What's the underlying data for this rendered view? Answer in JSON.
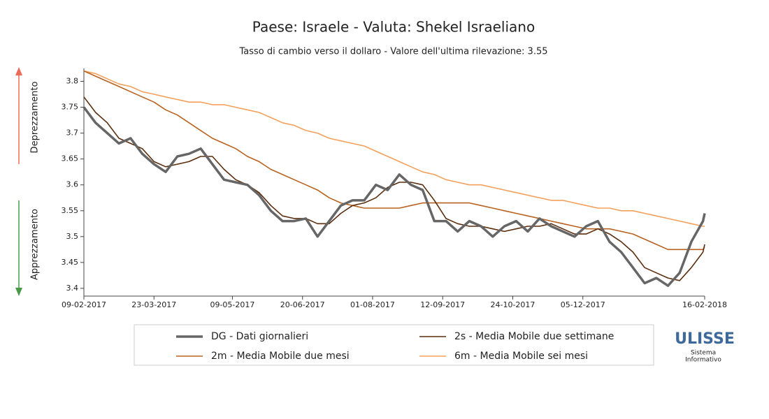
{
  "chart_data": {
    "type": "line",
    "title": "Paese: Israele - Valuta: Shekel Israeliano",
    "subtitle": "Tasso di cambio verso il dollaro - Valore dell'ultima rilevazione: 3.55",
    "side_labels": {
      "up": "Deprezzamento",
      "down": "Apprezzamento"
    },
    "logo": {
      "name": "ULISSE",
      "line1": "Sistema",
      "line2": "Informativo"
    },
    "x": [
      "09-02-2017",
      "16-02-2017",
      "23-02-2017",
      "02-03-2017",
      "09-03-2017",
      "16-03-2017",
      "23-03-2017",
      "30-03-2017",
      "06-04-2017",
      "13-04-2017",
      "20-04-2017",
      "27-04-2017",
      "04-05-2017",
      "11-05-2017",
      "18-05-2017",
      "25-05-2017",
      "01-06-2017",
      "08-06-2017",
      "15-06-2017",
      "22-06-2017",
      "29-06-2017",
      "06-07-2017",
      "13-07-2017",
      "20-07-2017",
      "27-07-2017",
      "03-08-2017",
      "10-08-2017",
      "17-08-2017",
      "24-08-2017",
      "31-08-2017",
      "07-09-2017",
      "14-09-2017",
      "21-09-2017",
      "28-09-2017",
      "05-10-2017",
      "12-10-2017",
      "19-10-2017",
      "26-10-2017",
      "02-11-2017",
      "09-11-2017",
      "16-11-2017",
      "23-11-2017",
      "30-11-2017",
      "07-12-2017",
      "14-12-2017",
      "21-12-2017",
      "28-12-2017",
      "04-01-2018",
      "11-01-2018",
      "18-01-2018",
      "25-01-2018",
      "01-02-2018",
      "08-02-2018",
      "15-02-2018",
      "16-02-2018"
    ],
    "series": [
      {
        "name": "DG - Dati giornalieri",
        "color": "#666666",
        "width": 3.5,
        "values": [
          3.75,
          3.72,
          3.7,
          3.68,
          3.69,
          3.66,
          3.64,
          3.625,
          3.655,
          3.66,
          3.67,
          3.64,
          3.61,
          3.605,
          3.6,
          3.58,
          3.55,
          3.53,
          3.53,
          3.535,
          3.5,
          3.53,
          3.56,
          3.57,
          3.57,
          3.6,
          3.59,
          3.62,
          3.6,
          3.59,
          3.53,
          3.53,
          3.51,
          3.53,
          3.52,
          3.5,
          3.52,
          3.53,
          3.51,
          3.535,
          3.52,
          3.51,
          3.5,
          3.52,
          3.53,
          3.49,
          3.47,
          3.44,
          3.41,
          3.42,
          3.405,
          3.43,
          3.49,
          3.53,
          3.545
        ]
      },
      {
        "name": "2s - Media Mobile due settimane",
        "color": "#5c2e0e",
        "width": 1.6,
        "values": [
          3.77,
          3.74,
          3.72,
          3.69,
          3.68,
          3.67,
          3.645,
          3.635,
          3.64,
          3.645,
          3.655,
          3.655,
          3.63,
          3.61,
          3.6,
          3.585,
          3.56,
          3.54,
          3.535,
          3.535,
          3.525,
          3.525,
          3.545,
          3.56,
          3.565,
          3.575,
          3.595,
          3.605,
          3.605,
          3.6,
          3.57,
          3.535,
          3.525,
          3.52,
          3.52,
          3.515,
          3.51,
          3.515,
          3.52,
          3.52,
          3.525,
          3.515,
          3.505,
          3.505,
          3.515,
          3.505,
          3.49,
          3.47,
          3.44,
          3.43,
          3.42,
          3.415,
          3.44,
          3.47,
          3.485
        ]
      },
      {
        "name": "2m - Media Mobile due mesi",
        "color": "#b9621f",
        "width": 1.6,
        "values": [
          3.82,
          3.81,
          3.8,
          3.79,
          3.78,
          3.77,
          3.76,
          3.745,
          3.735,
          3.72,
          3.705,
          3.69,
          3.68,
          3.67,
          3.655,
          3.645,
          3.63,
          3.62,
          3.61,
          3.6,
          3.59,
          3.575,
          3.565,
          3.56,
          3.555,
          3.555,
          3.555,
          3.555,
          3.56,
          3.565,
          3.565,
          3.565,
          3.565,
          3.565,
          3.56,
          3.555,
          3.55,
          3.545,
          3.54,
          3.535,
          3.53,
          3.525,
          3.52,
          3.515,
          3.515,
          3.515,
          3.51,
          3.505,
          3.495,
          3.485,
          3.475,
          3.475,
          3.475,
          3.475,
          3.48
        ]
      },
      {
        "name": "6m - Media Mobile sei mesi",
        "color": "#f5a05a",
        "width": 1.6,
        "values": [
          3.82,
          3.815,
          3.805,
          3.795,
          3.79,
          3.78,
          3.775,
          3.77,
          3.765,
          3.76,
          3.76,
          3.755,
          3.755,
          3.75,
          3.745,
          3.74,
          3.73,
          3.72,
          3.715,
          3.705,
          3.7,
          3.69,
          3.685,
          3.68,
          3.675,
          3.665,
          3.655,
          3.645,
          3.635,
          3.625,
          3.62,
          3.61,
          3.605,
          3.6,
          3.6,
          3.595,
          3.59,
          3.585,
          3.58,
          3.575,
          3.57,
          3.57,
          3.565,
          3.56,
          3.555,
          3.555,
          3.55,
          3.55,
          3.545,
          3.54,
          3.535,
          3.53,
          3.525,
          3.52,
          3.52
        ]
      }
    ],
    "xlim": [
      "09-02-2017",
      "16-02-2018"
    ],
    "xticks": [
      "09-02-2017",
      "23-03-2017",
      "09-05-2017",
      "20-06-2017",
      "01-08-2017",
      "12-09-2017",
      "24-10-2017",
      "05-12-2017",
      "16-02-2018"
    ],
    "ylim": [
      3.385,
      3.825
    ],
    "yticks": [
      3.4,
      3.45,
      3.5,
      3.55,
      3.6,
      3.65,
      3.7,
      3.75,
      3.8
    ],
    "grid": false
  }
}
